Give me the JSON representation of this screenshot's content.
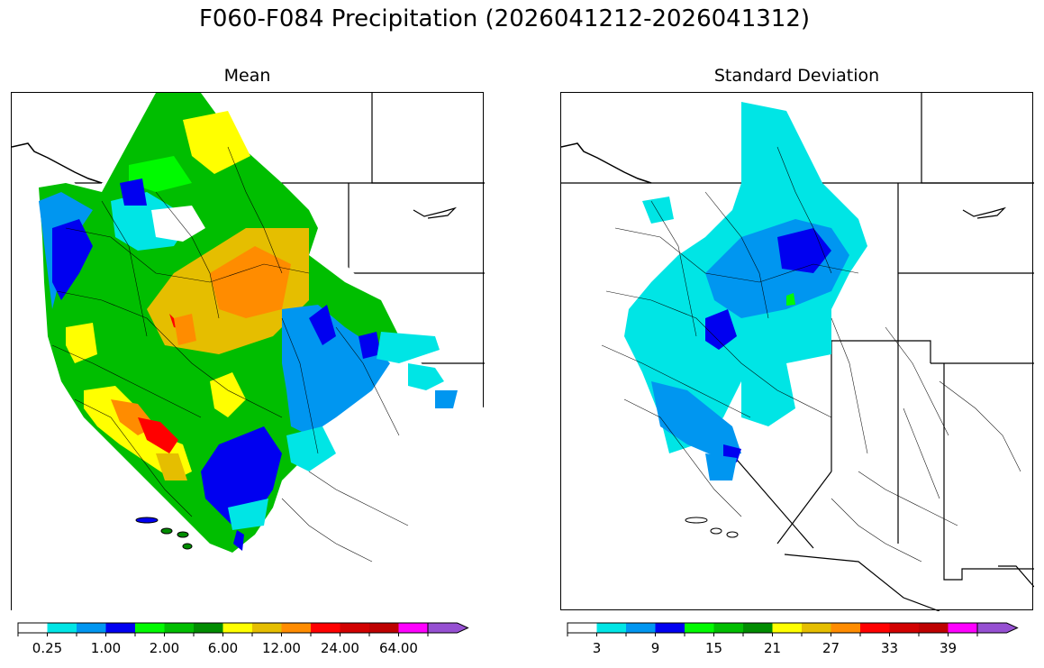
{
  "title": "F060-F084 Precipitation (2026041212-2026041312)",
  "panels": [
    {
      "id": "mean",
      "subtitle": "Mean",
      "colorbar": {
        "colors": [
          "#ffffff",
          "#00e5e5",
          "#0096f0",
          "#0000f0",
          "#00fa00",
          "#00be00",
          "#008c00",
          "#ffff00",
          "#e5be00",
          "#ff8c00",
          "#ff0000",
          "#d20000",
          "#be0000",
          "#ff00ff",
          "#9650d2"
        ],
        "tick_labels": [
          "0.25",
          "1.00",
          "2.00",
          "6.00",
          "12.00",
          "24.00",
          "64.00"
        ],
        "extend": "max"
      }
    },
    {
      "id": "std",
      "subtitle": "Standard Deviation",
      "colorbar": {
        "colors": [
          "#ffffff",
          "#00e5e5",
          "#0096f0",
          "#0000f0",
          "#00fa00",
          "#00be00",
          "#008c00",
          "#ffff00",
          "#e5be00",
          "#ff8c00",
          "#ff0000",
          "#d20000",
          "#be0000",
          "#ff00ff",
          "#9650d2"
        ],
        "tick_labels": [
          "3",
          "9",
          "15",
          "21",
          "27",
          "33",
          "39"
        ],
        "extend": "max"
      }
    }
  ]
}
